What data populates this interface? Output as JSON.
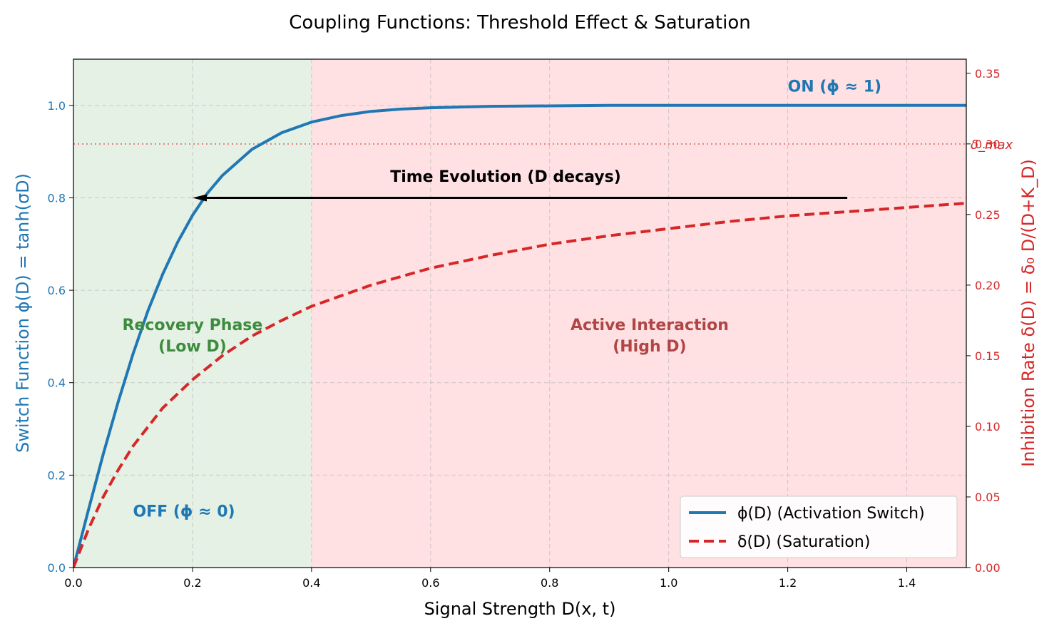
{
  "chart_data": {
    "type": "line",
    "title": "Coupling Functions: Threshold Effect & Saturation",
    "xlabel": "Signal Strength D(x, t)",
    "ylabel_left": "Switch Function ϕ(D) = tanh(σD)",
    "ylabel_right": "Inhibition Rate δ(D) = δ₀ D/(D+K_D)",
    "xlim": [
      0.0,
      1.5
    ],
    "ylim_left": [
      0.0,
      1.1
    ],
    "ylim_right": [
      0.0,
      0.36
    ],
    "x_ticks": [
      "0.0",
      "0.2",
      "0.4",
      "0.6",
      "0.8",
      "1.0",
      "1.2",
      "1.4"
    ],
    "y_left_ticks": [
      "0.0",
      "0.2",
      "0.4",
      "0.6",
      "0.8",
      "1.0"
    ],
    "y_right_ticks": [
      "0.00",
      "0.05",
      "0.10",
      "0.15",
      "0.20",
      "0.25",
      "0.30",
      "0.35"
    ],
    "grid": true,
    "legend_position": "bottom-right",
    "regions": [
      {
        "name": "recovery",
        "x_range": [
          0.0,
          0.4
        ],
        "color": "#e5f1e5",
        "label": [
          "Recovery Phase",
          "(Low D)"
        ],
        "label_color": "#3d8b3d"
      },
      {
        "name": "active",
        "x_range": [
          0.4,
          1.5
        ],
        "color": "#ffe1e3",
        "label": [
          "Active Interaction",
          "(High D)"
        ],
        "label_color": "#b04545"
      }
    ],
    "series": [
      {
        "name": "ϕ(D) (Activation Switch)",
        "axis": "left",
        "color": "#1f77b4",
        "style": "solid",
        "x": [
          0.0,
          0.025,
          0.05,
          0.075,
          0.1,
          0.125,
          0.15,
          0.175,
          0.2,
          0.225,
          0.25,
          0.3,
          0.35,
          0.4,
          0.45,
          0.5,
          0.55,
          0.6,
          0.7,
          0.8,
          0.9,
          1.0,
          1.1,
          1.2,
          1.3,
          1.4,
          1.5
        ],
        "values": [
          0.0,
          0.124,
          0.245,
          0.358,
          0.462,
          0.555,
          0.635,
          0.704,
          0.762,
          0.81,
          0.848,
          0.905,
          0.941,
          0.964,
          0.978,
          0.987,
          0.992,
          0.995,
          0.998,
          0.999,
          1.0,
          1.0,
          1.0,
          1.0,
          1.0,
          1.0,
          1.0
        ]
      },
      {
        "name": "δ(D) (Saturation)",
        "axis": "right",
        "color": "#d62728",
        "style": "dashed",
        "x": [
          0.0,
          0.025,
          0.05,
          0.075,
          0.1,
          0.15,
          0.2,
          0.25,
          0.3,
          0.35,
          0.4,
          0.5,
          0.6,
          0.7,
          0.8,
          0.9,
          1.0,
          1.1,
          1.2,
          1.3,
          1.4,
          1.5
        ],
        "values": [
          0.0,
          0.027,
          0.05,
          0.069,
          0.086,
          0.113,
          0.133,
          0.15,
          0.164,
          0.175,
          0.185,
          0.2,
          0.212,
          0.221,
          0.229,
          0.235,
          0.24,
          0.245,
          0.249,
          0.252,
          0.255,
          0.258
        ]
      }
    ],
    "reference_lines": [
      {
        "name": "δ_max",
        "axis": "right",
        "y": 0.3,
        "color": "#e08080",
        "style": "dotted",
        "label": "δ_max"
      }
    ],
    "annotations": [
      {
        "name": "on-annotation",
        "text": "ON (ϕ ≈ 1)",
        "x": 1.2,
        "y": 1.03,
        "axis": "left",
        "color": "#1f77b4"
      },
      {
        "name": "off-annotation",
        "text": "OFF (ϕ ≈ 0)",
        "x": 0.1,
        "y": 0.11,
        "axis": "left",
        "color": "#1f77b4"
      },
      {
        "name": "time-evolution",
        "text": "Time Evolution (D decays)",
        "x": 0.75,
        "y": 0.835,
        "axis": "left",
        "color": "#000000"
      }
    ],
    "arrow": {
      "from": [
        1.3,
        0.8
      ],
      "to": [
        0.2,
        0.8
      ],
      "axis": "left",
      "color": "#000000"
    }
  }
}
